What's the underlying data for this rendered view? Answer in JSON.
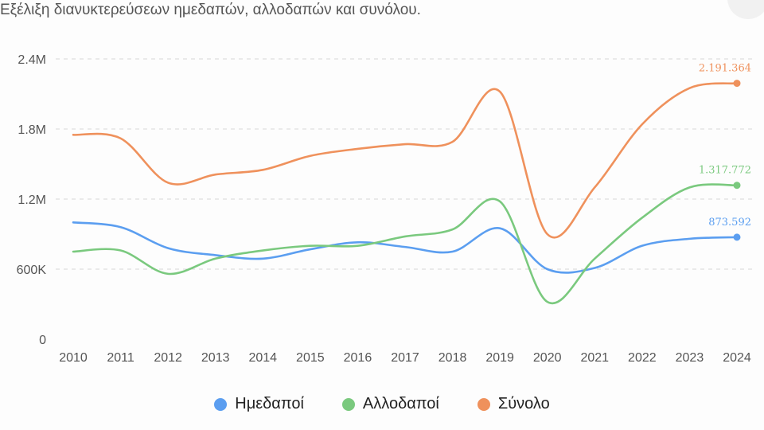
{
  "chart_data": {
    "type": "line",
    "title": "Εξέλιξη διανυκτερεύσεων ημεδαπών, αλλοδαπών και συνόλου.",
    "x": [
      "2010",
      "2011",
      "2012",
      "2013",
      "2014",
      "2015",
      "2016",
      "2017",
      "2018",
      "2019",
      "2020",
      "2021",
      "2022",
      "2023",
      "2024"
    ],
    "ylim": [
      0,
      2400000
    ],
    "yticks": [
      0,
      600000,
      1200000,
      1800000,
      2400000
    ],
    "ytick_labels": [
      "0",
      "600K",
      "1.2M",
      "1.8M",
      "2.4M"
    ],
    "grid": true,
    "legend_position": "bottom-center",
    "series": [
      {
        "name": "Ημεδαποί",
        "color": "#5b9ef0",
        "values": [
          1000000,
          960000,
          780000,
          720000,
          690000,
          770000,
          830000,
          790000,
          750000,
          950000,
          600000,
          610000,
          800000,
          860000,
          873592
        ],
        "end_label": "873.592"
      },
      {
        "name": "Αλλοδαποί",
        "color": "#7ac97e",
        "values": [
          750000,
          760000,
          560000,
          690000,
          760000,
          800000,
          800000,
          880000,
          940000,
          1180000,
          320000,
          690000,
          1040000,
          1300000,
          1317772
        ],
        "end_label": "1.317.772"
      },
      {
        "name": "Σύνολο",
        "color": "#ef915c",
        "values": [
          1750000,
          1720000,
          1340000,
          1410000,
          1450000,
          1570000,
          1630000,
          1670000,
          1690000,
          2120000,
          900000,
          1300000,
          1840000,
          2150000,
          2191364
        ],
        "end_label": "2.191.364"
      }
    ]
  }
}
